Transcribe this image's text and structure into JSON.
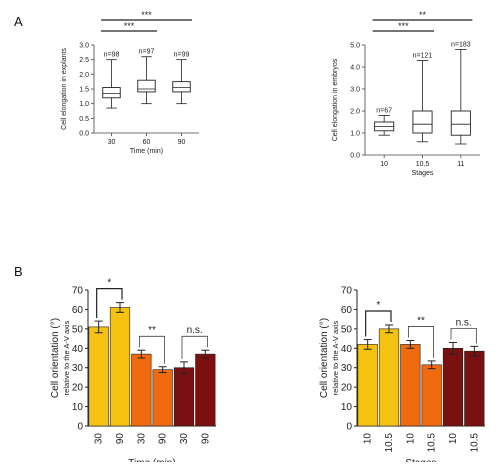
{
  "figure": {
    "panel_a_label": "A",
    "panel_b_label": "B"
  },
  "chart_data": [
    {
      "type": "box",
      "panel": "A-left",
      "ylabel": "Cell elongation in explants",
      "xlabel": "Time (min)",
      "ylim": [
        0,
        3.0
      ],
      "yticks": [
        "0.0",
        "0.5",
        "1.0",
        "1.5",
        "2.0",
        "2.5",
        "3.0"
      ],
      "categories": [
        "30",
        "60",
        "90"
      ],
      "n_labels": [
        "n=98",
        "n=97",
        "n=99"
      ],
      "boxes": [
        {
          "min": 0.85,
          "q1": 1.2,
          "median": 1.35,
          "q3": 1.55,
          "max": 2.5
        },
        {
          "min": 1.0,
          "q1": 1.4,
          "median": 1.5,
          "q3": 1.8,
          "max": 2.6
        },
        {
          "min": 1.0,
          "q1": 1.4,
          "median": 1.55,
          "q3": 1.75,
          "max": 2.5
        }
      ],
      "significance": [
        {
          "from": 0,
          "to": 1,
          "label": "***"
        },
        {
          "from": 0,
          "to": 2,
          "label": "***"
        }
      ],
      "color": "#222222"
    },
    {
      "type": "box",
      "panel": "A-right",
      "ylabel": "Cell elongation in embryos",
      "xlabel": "Stages",
      "ylim": [
        0,
        5.0
      ],
      "yticks": [
        "0.0",
        "1.0",
        "2.0",
        "3.0",
        "4.0",
        "5.0"
      ],
      "categories": [
        "10",
        "10.5",
        "11"
      ],
      "n_labels": [
        "n=67",
        "n=121",
        "n=183"
      ],
      "boxes": [
        {
          "min": 0.9,
          "q1": 1.1,
          "median": 1.3,
          "q3": 1.5,
          "max": 1.8
        },
        {
          "min": 0.6,
          "q1": 1.0,
          "median": 1.4,
          "q3": 2.0,
          "max": 4.3
        },
        {
          "min": 0.5,
          "q1": 0.9,
          "median": 1.4,
          "q3": 2.0,
          "max": 4.8
        }
      ],
      "significance": [
        {
          "from": 0,
          "to": 1,
          "label": "***"
        },
        {
          "from": 0,
          "to": 2,
          "label": "**"
        }
      ],
      "color": "#222222"
    },
    {
      "type": "bar",
      "panel": "B-left",
      "ylabel": "Cell orientation (°)",
      "ylabel2": "relative to the A-V axis",
      "xlabel": "Time (min)",
      "ylim": [
        0,
        70
      ],
      "yticks": [
        "0",
        "10",
        "20",
        "30",
        "40",
        "50",
        "60",
        "70"
      ],
      "categories": [
        "30",
        "90",
        "30",
        "90",
        "30",
        "90"
      ],
      "values": [
        51,
        61,
        37,
        29,
        30,
        37
      ],
      "errors": [
        3,
        2.5,
        2,
        1.5,
        3,
        2
      ],
      "colors": [
        "#f5c211",
        "#f5c211",
        "#f06a10",
        "#f06a10",
        "#7a1010",
        "#7a1010"
      ],
      "significance": [
        {
          "from": 0,
          "to": 1,
          "label": "*",
          "bold": true
        },
        {
          "from": 2,
          "to": 3,
          "label": "**",
          "bold": false
        },
        {
          "from": 4,
          "to": 5,
          "label": "n.s.",
          "bold": false
        }
      ]
    },
    {
      "type": "bar",
      "panel": "B-right",
      "ylabel": "Cell orientation (°)",
      "ylabel2": "relative to the A-V axis",
      "xlabel": "Stages",
      "ylim": [
        0,
        70
      ],
      "yticks": [
        "0",
        "10",
        "20",
        "30",
        "40",
        "50",
        "60",
        "70"
      ],
      "categories": [
        "10",
        "10.5",
        "10",
        "10.5",
        "10",
        "10.5"
      ],
      "values": [
        42,
        50,
        42,
        31.5,
        40,
        38.5
      ],
      "errors": [
        2.5,
        2,
        2,
        2,
        3,
        2.5
      ],
      "colors": [
        "#f5c211",
        "#f5c211",
        "#f06a10",
        "#f06a10",
        "#7a1010",
        "#7a1010"
      ],
      "significance": [
        {
          "from": 0,
          "to": 1,
          "label": "*",
          "bold": true
        },
        {
          "from": 2,
          "to": 3,
          "label": "**",
          "bold": false
        },
        {
          "from": 4,
          "to": 5,
          "label": "n.s.",
          "bold": false
        }
      ]
    }
  ]
}
